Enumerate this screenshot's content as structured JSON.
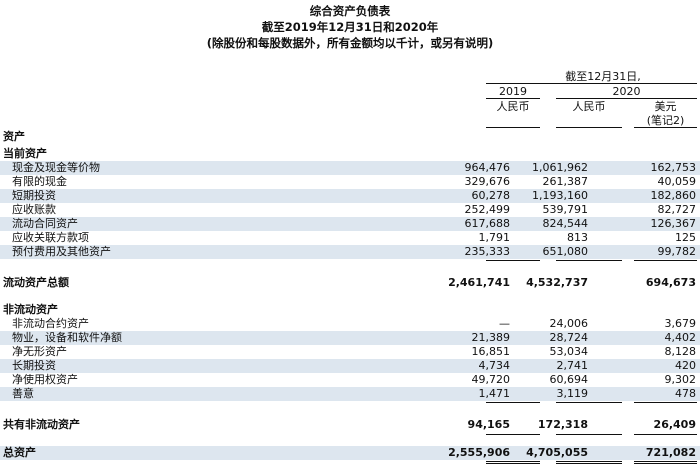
{
  "title": {
    "line1": "综合资产负债表",
    "line2": "截至2019年12月31日和2020年",
    "line3": "(除股份和每股数据外，所有金额均以千计，或另有说明)"
  },
  "header": {
    "as_of": "截至12月31日,",
    "year_2019": "2019",
    "year_2020": "2020",
    "cur_rmb_2019": "人民币",
    "cur_rmb_2020": "人民币",
    "cur_usd": "美元",
    "note": "(笔记2)"
  },
  "sections": {
    "assets": "资产",
    "current_assets": "当前资产",
    "total_current": {
      "label": "流动资产总额",
      "v2019": "2,461,741",
      "v2020": "4,532,737",
      "usd": "694,673"
    },
    "non_current_assets": "非流动资产",
    "total_non_current": {
      "label": "共有非流动资产",
      "v2019": "94,165",
      "v2020": "172,318",
      "usd": "26,409"
    },
    "total_assets": {
      "label": "总资产",
      "v2019": "2,555,906",
      "v2020": "4,705,055",
      "usd": "721,082"
    }
  },
  "current_rows": [
    {
      "label": "现金及现金等价物",
      "v2019": "964,476",
      "v2020": "1,061,962",
      "usd": "162,753"
    },
    {
      "label": "有限的现金",
      "v2019": "329,676",
      "v2020": "261,387",
      "usd": "40,059"
    },
    {
      "label": "短期投资",
      "v2019": "60,278",
      "v2020": "1,193,160",
      "usd": "182,860"
    },
    {
      "label": "应收账款",
      "v2019": "252,499",
      "v2020": "539,791",
      "usd": "82,727"
    },
    {
      "label": "流动合同资产",
      "v2019": "617,688",
      "v2020": "824,544",
      "usd": "126,367"
    },
    {
      "label": "应收关联方款项",
      "v2019": "1,791",
      "v2020": "813",
      "usd": "125"
    },
    {
      "label": "预付费用及其他资产",
      "v2019": "235,333",
      "v2020": "651,080",
      "usd": "99,782"
    }
  ],
  "non_current_rows": [
    {
      "label": "非流动合约资产",
      "v2019": "—",
      "v2020": "24,006",
      "usd": "3,679"
    },
    {
      "label": "物业，设备和软件净额",
      "v2019": "21,389",
      "v2020": "28,724",
      "usd": "4,402"
    },
    {
      "label": "净无形资产",
      "v2019": "16,851",
      "v2020": "53,034",
      "usd": "8,128"
    },
    {
      "label": "长期投资",
      "v2019": "4,734",
      "v2020": "2,741",
      "usd": "420"
    },
    {
      "label": "净使用权资产",
      "v2019": "49,720",
      "v2020": "60,694",
      "usd": "9,302"
    },
    {
      "label": "善意",
      "v2019": "1,471",
      "v2020": "3,119",
      "usd": "478"
    }
  ]
}
